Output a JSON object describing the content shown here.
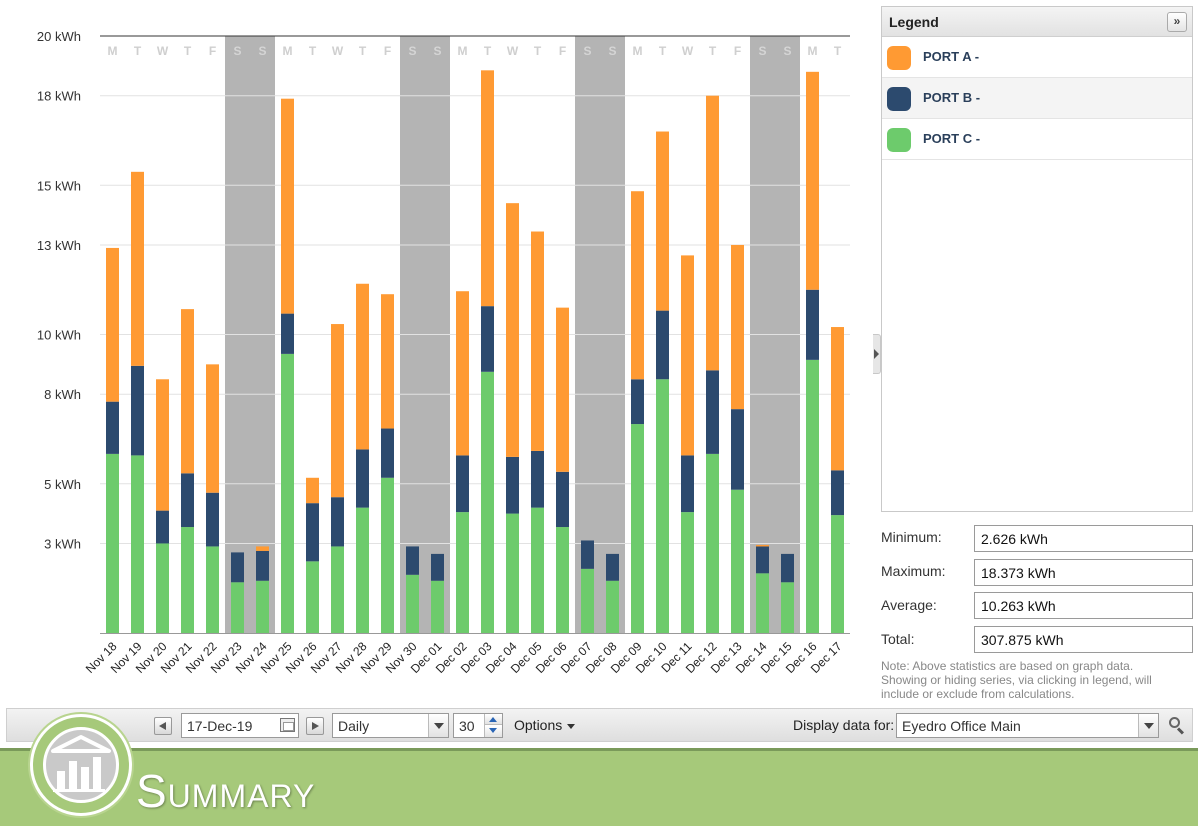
{
  "chart_data": {
    "type": "bar",
    "stacked": true,
    "categories": [
      "Nov 18",
      "Nov 19",
      "Nov 20",
      "Nov 21",
      "Nov 22",
      "Nov 23",
      "Nov 24",
      "Nov 25",
      "Nov 26",
      "Nov 27",
      "Nov 28",
      "Nov 29",
      "Nov 30",
      "Dec 01",
      "Dec 02",
      "Dec 03",
      "Dec 04",
      "Dec 05",
      "Dec 06",
      "Dec 07",
      "Dec 08",
      "Dec 09",
      "Dec 10",
      "Dec 11",
      "Dec 12",
      "Dec 13",
      "Dec 14",
      "Dec 15",
      "Dec 16",
      "Dec 17"
    ],
    "weekdays": [
      "M",
      "T",
      "W",
      "T",
      "F",
      "S",
      "S",
      "M",
      "T",
      "W",
      "T",
      "F",
      "S",
      "S",
      "M",
      "T",
      "W",
      "T",
      "F",
      "S",
      "S",
      "M",
      "T",
      "W",
      "T",
      "F",
      "S",
      "S",
      "M",
      "T"
    ],
    "weekend": [
      false,
      false,
      false,
      false,
      false,
      true,
      true,
      false,
      false,
      false,
      false,
      false,
      true,
      true,
      false,
      false,
      false,
      false,
      false,
      true,
      true,
      false,
      false,
      false,
      false,
      false,
      true,
      true,
      false,
      false
    ],
    "series": [
      {
        "name": "PORT C -",
        "color": "#6dcb6c",
        "values": [
          6.0,
          5.95,
          3.0,
          3.55,
          2.9,
          1.7,
          1.75,
          9.35,
          2.4,
          2.9,
          4.2,
          5.2,
          1.95,
          1.75,
          4.05,
          8.75,
          4.0,
          4.2,
          3.55,
          2.15,
          1.75,
          7.0,
          8.5,
          4.05,
          6.0,
          4.8,
          2.0,
          1.7,
          9.15,
          3.95
        ]
      },
      {
        "name": "PORT B -",
        "color": "#2c4a6e",
        "values": [
          1.75,
          3.0,
          1.1,
          1.8,
          1.8,
          1.0,
          1.0,
          1.35,
          1.95,
          1.65,
          1.95,
          1.65,
          0.95,
          0.9,
          1.9,
          2.2,
          1.9,
          1.9,
          1.85,
          0.95,
          0.9,
          1.5,
          2.3,
          1.9,
          2.8,
          2.7,
          0.9,
          0.95,
          2.35,
          1.5
        ]
      },
      {
        "name": "PORT A -",
        "color": "#ff9a33",
        "values": [
          5.15,
          6.5,
          4.4,
          5.5,
          4.3,
          0.0,
          0.15,
          7.2,
          0.85,
          5.8,
          5.55,
          4.5,
          0.0,
          0.0,
          5.5,
          7.9,
          8.5,
          7.35,
          5.5,
          0.0,
          0.0,
          6.3,
          6.0,
          6.7,
          9.2,
          5.5,
          0.05,
          0.0,
          7.3,
          4.8
        ]
      }
    ],
    "ylim": [
      0,
      20
    ],
    "yticks": [
      3,
      5,
      8,
      10,
      13,
      15,
      18,
      20
    ],
    "ytick_labels": [
      "3 kWh",
      "5 kWh",
      "8 kWh",
      "10 kWh",
      "13 kWh",
      "15 kWh",
      "18 kWh",
      "20 kWh"
    ],
    "grid": true,
    "legend": "right"
  },
  "legend": {
    "title": "Legend",
    "expand_icon": "double-chevron-right-icon",
    "items": [
      {
        "label": "PORT A -",
        "color": "#ff9a33"
      },
      {
        "label": "PORT B -",
        "color": "#2c4a6e"
      },
      {
        "label": "PORT C -",
        "color": "#6dcb6c"
      }
    ]
  },
  "stats": {
    "minimum_label": "Minimum:",
    "minimum_value": "2.626 kWh",
    "maximum_label": "Maximum:",
    "maximum_value": "18.373 kWh",
    "average_label": "Average:",
    "average_value": "10.263 kWh",
    "total_label": "Total:",
    "total_value": "307.875 kWh",
    "note": "Note: Above statistics are based on graph data. Showing or hiding series, via clicking in legend, will include or exclude from calculations."
  },
  "toolbar": {
    "date": "17-Dec-19",
    "interval": "Daily",
    "count": "30",
    "options_label": "Options",
    "display_label": "Display data for:",
    "display_value": "Eyedro Office Main"
  },
  "footer": {
    "title": "Summary"
  }
}
